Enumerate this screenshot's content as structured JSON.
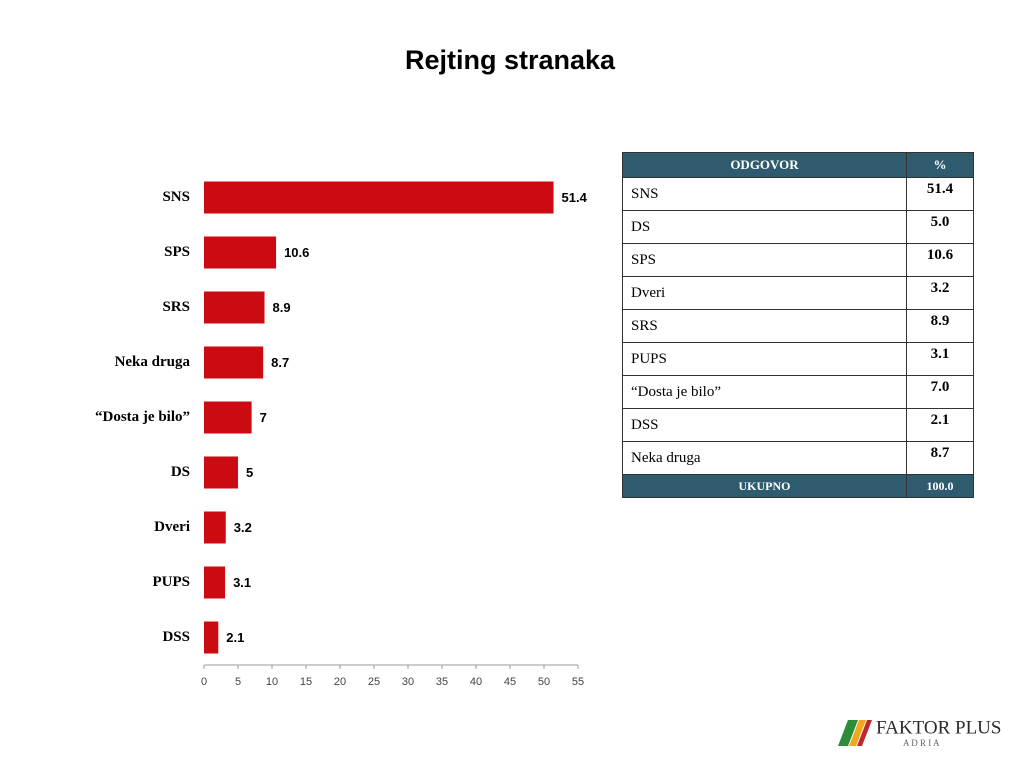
{
  "chart_data": {
    "type": "hbar",
    "title": "Rejting stranaka",
    "categories": [
      "SNS",
      "SPS",
      "SRS",
      "Neka druga",
      "“Dosta je bilo”",
      "DS",
      "Dveri",
      "PUPS",
      "DSS"
    ],
    "values": [
      51.4,
      10.6,
      8.9,
      8.7,
      7,
      5,
      3.2,
      3.1,
      2.1
    ],
    "color": "#cc0a12",
    "xlim": [
      0,
      55
    ],
    "xticks": [
      0,
      5,
      10,
      15,
      20,
      25,
      30,
      35,
      40,
      45,
      50,
      55
    ],
    "grid": false
  },
  "table": {
    "header": [
      "ODGOVOR",
      "%"
    ],
    "rows": [
      [
        "SNS",
        "51.4"
      ],
      [
        "DS",
        "5.0"
      ],
      [
        "SPS",
        "10.6"
      ],
      [
        "Dveri",
        "3.2"
      ],
      [
        "SRS",
        "8.9"
      ],
      [
        "PUPS",
        "3.1"
      ],
      [
        "“Dosta je bilo”",
        "7.0"
      ],
      [
        "DSS",
        "2.1"
      ],
      [
        "Neka druga",
        "8.7"
      ]
    ],
    "footer": [
      "UKUPNO",
      "100.0"
    ]
  },
  "logo": {
    "name": "FAKTOR PLUS",
    "sub": "A D R I A"
  }
}
